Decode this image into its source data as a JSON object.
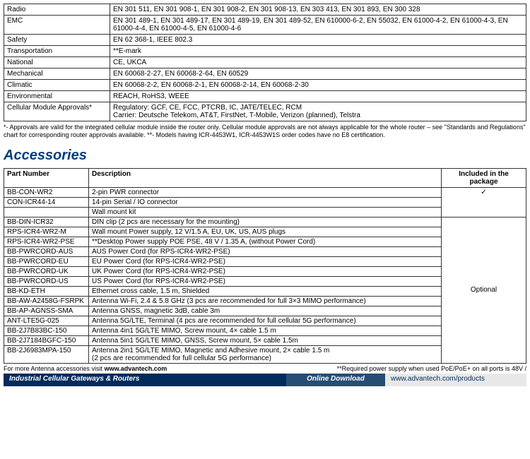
{
  "standards": {
    "rows": [
      {
        "label": "Radio",
        "value": "EN 301 511, EN 301 908-1, EN 301 908-2, EN 301 908-13, EN 303 413, EN 301 893, EN 300 328"
      },
      {
        "label": "EMC",
        "value": "EN 301 489-1, EN 301 489-17, EN 301 489-19, EN 301 489-52, EN 610000-6-2, EN 55032, EN 61000-4-2, EN 61000-4-3, EN 61000-4-4, EN 61000-4-5, EN 61000-4-6"
      },
      {
        "label": "Safety",
        "value": "EN 62 368-1, IEEE 802.3"
      },
      {
        "label": "Transportation",
        "value": "**E-mark"
      },
      {
        "label": "National",
        "value": "CE, UKCA"
      },
      {
        "label": "Mechanical",
        "value": "EN 60068-2-27, EN 60068-2-64, EN 60529"
      },
      {
        "label": "Climatic",
        "value": "EN 60068-2-2, EN 60068-2-1, EN 60068-2-14, EN 60068-2-30"
      },
      {
        "label": "Environmental",
        "value": "REACH, RoHS3, WEEE"
      },
      {
        "label": "Cellular Module Approvals*",
        "value": "Regulatory: GCF, CE, FCC, PTCRB, IC, JATE/TELEC, RCM\nCarrier: Deutsche Telekom, AT&T, FirstNet, T-Mobile, Verizon (planned), Telstra"
      }
    ],
    "footnote": "*- Approvals are valid for the integrated cellular module inside the router only. Cellular module approvals are not always applicable for the whole router – see \"Standards and Regulations\" chart for corresponding router approvals available. **- Models having ICR-4453W1, ICR-4453W1S order codes have no E8 certification."
  },
  "accessories": {
    "title": "Accessories",
    "headers": {
      "part": "Part Number",
      "desc": "Description",
      "incl": "Included in the package"
    },
    "included_label": "✓",
    "optional_label": "Optional",
    "included_rows": [
      {
        "part": "BB-CON-WR2",
        "desc": "2-pin PWR connector"
      },
      {
        "part": "CON-ICR44-14",
        "desc": "14-pin Serial / IO connector"
      },
      {
        "part": "",
        "desc": "Wall mount kit"
      }
    ],
    "optional_rows": [
      {
        "part": "BB-DIN-ICR32",
        "desc": "DIN clip (2 pcs are necessary for the mounting)"
      },
      {
        "part": "RPS-ICR4-WR2-M",
        "desc": "Wall mount Power supply, 12 V/1.5 A, EU, UK, US, AUS plugs"
      },
      {
        "part": "RPS-ICR4-WR2-PSE",
        "desc": "**Desktop Power supply POE PSE, 48 V / 1.35 A, (without Power Cord)"
      },
      {
        "part": "BB-PWRCORD-AUS",
        "desc": "AUS Power Cord (for RPS-ICR4-WR2-PSE)"
      },
      {
        "part": "BB-PWRCORD-EU",
        "desc": "EU Power Cord (for RPS-ICR4-WR2-PSE)"
      },
      {
        "part": "BB-PWRCORD-UK",
        "desc": "UK Power Cord (for RPS-ICR4-WR2-PSE)"
      },
      {
        "part": "BB-PWRCORD-US",
        "desc": "US Power Cord (for RPS-ICR4-WR2-PSE)"
      },
      {
        "part": "BB-KD-ETH",
        "desc": "Ethernet cross cable, 1.5 m, Shielded"
      },
      {
        "part": "BB-AW-A2458G-FSRPK",
        "desc": "Antenna Wi-Fi, 2.4 & 5.8 GHz (3 pcs are recommended for full 3×3 MIMO performance)"
      },
      {
        "part": "BB-AP-AGNSS-SMA",
        "desc": "Antenna GNSS, magnetic 3dB, cable 3m"
      },
      {
        "part": "ANT-LTE5G-025",
        "desc": "Antenna 5G/LTE, Terminal (4 pcs are recommended for full cellular 5G performance)"
      },
      {
        "part": "BB-2J7B83BC-150",
        "desc": "Antenna 4in1 5G/LTE MIMO, Screw mount, 4× cable 1.5 m"
      },
      {
        "part": "BB-2J7184BGFC-150",
        "desc": "Antenna 5in1 5G/LTE MIMO, GNSS, Screw mount, 5× cable 1.5m"
      },
      {
        "part": "BB-2J6983MPA-150",
        "desc": "Antenna 2in1 5G/LTE MIMO, Magnetic and Adhesive mount, 2× cable 1.5 m\n(2 pcs are recommended for full cellular 5G performance)"
      }
    ],
    "more_left_prefix": "For more Antenna accessories visit ",
    "more_left_bold": "www.advantech.com",
    "more_right": "**Required power supply when used PoE/PoE+ on all ports is 48V /"
  },
  "footer": {
    "left": "Industrial Cellular Gateways & Routers",
    "mid": "Online Download",
    "right": "www.advantech.com/products"
  }
}
